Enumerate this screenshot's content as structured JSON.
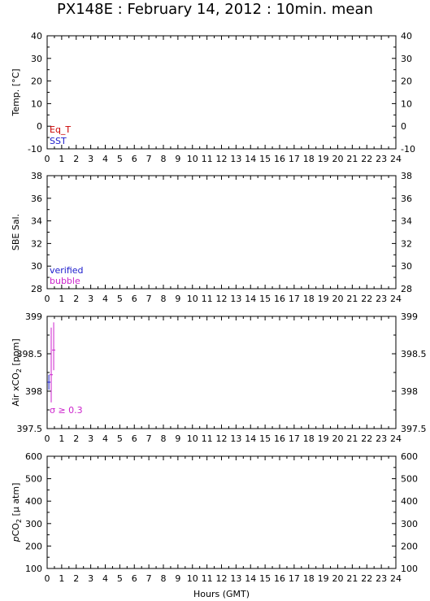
{
  "title": "PX148E : February 14, 2012 : 10min. mean",
  "colors": {
    "eq_t": "#cc0000",
    "sst": "#1a1acc",
    "verified": "#1a1acc",
    "bubble": "#cc22cc",
    "sigma": "#cc22cc",
    "air_data": "#cc22cc"
  },
  "chart_data": [
    {
      "type": "scatter",
      "ylabel": "Temp. [°C]",
      "ylim": [
        -10,
        40
      ],
      "yticks": [
        -10,
        0,
        10,
        20,
        30,
        40
      ],
      "xlim": [
        0,
        24
      ],
      "xticks": [
        0,
        1,
        2,
        3,
        4,
        5,
        6,
        7,
        8,
        9,
        10,
        11,
        12,
        13,
        14,
        15,
        16,
        17,
        18,
        19,
        20,
        21,
        22,
        23,
        24
      ],
      "legend": [
        "Eq_T",
        "SST"
      ],
      "series": []
    },
    {
      "type": "scatter",
      "ylabel": "SBE Sal.",
      "ylim": [
        28,
        38
      ],
      "yticks": [
        28,
        30,
        32,
        34,
        36,
        38
      ],
      "xlim": [
        0,
        24
      ],
      "xticks": [
        0,
        1,
        2,
        3,
        4,
        5,
        6,
        7,
        8,
        9,
        10,
        11,
        12,
        13,
        14,
        15,
        16,
        17,
        18,
        19,
        20,
        21,
        22,
        23,
        24
      ],
      "legend": [
        "verified",
        "bubble"
      ],
      "series": []
    },
    {
      "type": "scatter",
      "ylabel_main": "Air xCO",
      "ylabel_sub": "2",
      "ylabel_tail": " [ppm]",
      "ylim": [
        397.5,
        399
      ],
      "yticks": [
        397.5,
        398,
        398.5,
        399
      ],
      "yticklabels": [
        "397.5",
        "398",
        "398.5",
        "399"
      ],
      "xlim": [
        0,
        24
      ],
      "xticks": [
        0,
        1,
        2,
        3,
        4,
        5,
        6,
        7,
        8,
        9,
        10,
        11,
        12,
        13,
        14,
        15,
        16,
        17,
        18,
        19,
        20,
        21,
        22,
        23,
        24
      ],
      "annotation": "σ ≥ 0.3",
      "series": [
        {
          "points": [
            {
              "x": 0.12,
              "y": 398.12,
              "err_low": 398.02,
              "err_high": 398.22,
              "flag": "verified"
            },
            {
              "x": 0.28,
              "y": 398.22,
              "err_low": 397.85,
              "err_high": 398.85,
              "flag": "bubble"
            },
            {
              "x": 0.45,
              "y": 398.55,
              "err_low": 398.28,
              "err_high": 398.92,
              "flag": "bubble"
            }
          ]
        }
      ]
    },
    {
      "type": "scatter",
      "ylabel_italic": "p",
      "ylabel_main": "CO",
      "ylabel_sub": "2",
      "ylabel_tail": " [μ atm]",
      "ylim": [
        100,
        600
      ],
      "yticks": [
        100,
        200,
        300,
        400,
        500,
        600
      ],
      "xlim": [
        0,
        24
      ],
      "xticks": [
        0,
        1,
        2,
        3,
        4,
        5,
        6,
        7,
        8,
        9,
        10,
        11,
        12,
        13,
        14,
        15,
        16,
        17,
        18,
        19,
        20,
        21,
        22,
        23,
        24
      ],
      "xlabel": "Hours (GMT)",
      "series": []
    }
  ]
}
